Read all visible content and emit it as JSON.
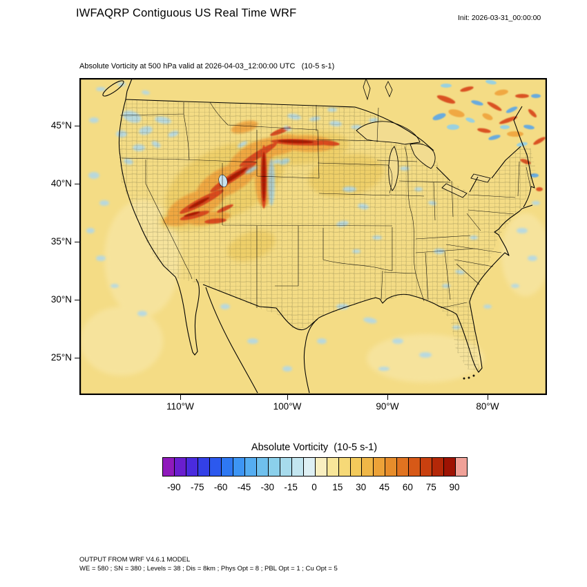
{
  "header": {
    "title": "IWFAQRP Contiguous US Real Time WRF",
    "init_label": "Init: 2026-03-31_00:00:00"
  },
  "plot": {
    "subtitle": "Absolute Vorticity at 500 hPa valid at 2026-04-03_12:00:00 UTC   (10-5 s-1)"
  },
  "footer": {
    "line1": "OUTPUT FROM WRF V4.6.1 MODEL",
    "line2": "WE = 580 ; SN = 380 ; Levels = 38 ; Dis = 8km ; Phys Opt = 8 ; PBL Opt = 1 ; Cu Opt = 5"
  },
  "chart_data": {
    "type": "heatmap",
    "title": "Absolute Vorticity at 500 hPa valid at 2026-04-03_12:00:00 UTC (10-5 s-1)",
    "variable": "Absolute Vorticity",
    "level": "500 hPa",
    "valid_time": "2026-04-03_12:00:00 UTC",
    "init_time": "2026-03-31_00:00:00",
    "units": "10-5 s-1",
    "projection": "Lambert conformal, contiguous US with county boundaries",
    "y_axis": {
      "label": "latitude",
      "tick_labels": [
        "45°N",
        "40°N",
        "35°N",
        "30°N",
        "25°N"
      ]
    },
    "x_axis": {
      "label": "longitude",
      "tick_labels": [
        "110°W",
        "100°W",
        "90°W",
        "80°W"
      ]
    },
    "colorbar": {
      "title": "Absolute Vorticity  (10-5 s-1)",
      "orientation": "horizontal",
      "tick_values": [
        -90,
        -75,
        -60,
        -45,
        -30,
        -15,
        0,
        15,
        30,
        45,
        60,
        75,
        90
      ],
      "value_min": -97.5,
      "value_max": 97.5,
      "cell_width_value": 7.5,
      "cell_colors": [
        "#8F1ABC",
        "#6A1ECF",
        "#4A2BDE",
        "#3340E7",
        "#2C59EE",
        "#2E78F2",
        "#3D95F4",
        "#55ADF1",
        "#6FC0ED",
        "#8BD0EB",
        "#A7DBEC",
        "#C3E6F0",
        "#DEF0F4",
        "#F9EFC0",
        "#F8E699",
        "#F6D977",
        "#F3CA5B",
        "#F0B747",
        "#ECA238",
        "#E78D2B",
        "#E07320",
        "#D75917",
        "#C9400F",
        "#B42808",
        "#9E1303",
        "#F0A198"
      ]
    },
    "field_features": [
      {
        "region": "CONUS background field",
        "value_range": [
          0,
          20
        ]
      },
      {
        "region": "Narrow cyclonic vorticity filaments over WY / CO / NE (lee of Rockies)",
        "value_range": [
          60,
          95
        ]
      },
      {
        "region": "Orange envelope around Rockies streaks (MT-WY-CO-UT-NE)",
        "value_range": [
          30,
          60
        ]
      },
      {
        "region": "Gold band over high plains and four corners",
        "value_range": [
          15,
          35
        ]
      },
      {
        "region": "Scattered weak negative patches (Pacific NW, northern plains, Gulf, Atlantic)",
        "value_range": [
          -25,
          0
        ]
      },
      {
        "region": "Turbulent eddies over SE Canada / top-right of domain",
        "value_range": [
          -75,
          90
        ]
      }
    ]
  }
}
